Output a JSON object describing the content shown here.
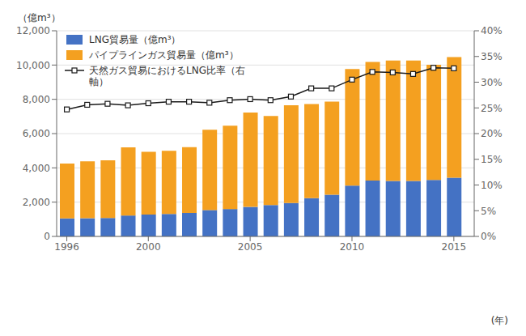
{
  "chart_data": {
    "type": "bar",
    "stacked": true,
    "x": [
      1996,
      1997,
      1998,
      1999,
      2000,
      2001,
      2002,
      2003,
      2004,
      2005,
      2006,
      2007,
      2008,
      2009,
      2010,
      2011,
      2012,
      2013,
      2014,
      2015
    ],
    "xlim": [
      1995.5,
      2016
    ],
    "xticks": [
      1996,
      2000,
      2005,
      2010,
      2015
    ],
    "ylim": [
      0,
      12000
    ],
    "yticks": [
      0,
      {
        "value": 2000,
        "label": "2,000"
      },
      {
        "value": 4000,
        "label": "4,000"
      },
      {
        "value": 6000,
        "label": "6,000"
      },
      {
        "value": 8000,
        "label": "8,000"
      },
      {
        "value": 10000,
        "label": "10,000"
      },
      {
        "value": 12000,
        "label": "12,000"
      }
    ],
    "y2lim": [
      0,
      40
    ],
    "y2ticks": [
      {
        "value": 0,
        "label": "0%"
      },
      {
        "value": 5,
        "label": "5%"
      },
      {
        "value": 10,
        "label": "10%"
      },
      {
        "value": 15,
        "label": "15%"
      },
      {
        "value": 20,
        "label": "20%"
      },
      {
        "value": 25,
        "label": "25%"
      },
      {
        "value": 30,
        "label": "30%"
      },
      {
        "value": 35,
        "label": "35%"
      },
      {
        "value": 40,
        "label": "40%"
      }
    ],
    "ylabel": "（億m³）",
    "xlabel": "(年)",
    "grid": "y",
    "legend": "upper left",
    "series": [
      {
        "name": "LNG貿易量（億m³）",
        "type": "bar",
        "color": "#4472C4",
        "values": [
          1050,
          1060,
          1080,
          1220,
          1280,
          1310,
          1370,
          1540,
          1600,
          1720,
          1830,
          1950,
          2230,
          2430,
          2970,
          3260,
          3240,
          3240,
          3300,
          3420
        ]
      },
      {
        "name": "パイプラインガス貿易量（億m³）",
        "type": "bar",
        "color": "#F4A020",
        "values": [
          3200,
          3320,
          3360,
          3980,
          3660,
          3690,
          3840,
          4680,
          4860,
          5510,
          5200,
          5700,
          5500,
          5440,
          6800,
          6920,
          7020,
          7020,
          6720,
          7050
        ]
      },
      {
        "name": "天然ガス貿易におけるLNG比率（右\n軸）",
        "type": "line",
        "axis": "y2",
        "color": "#1a1a1a",
        "marker": "square",
        "values": [
          24.7,
          25.6,
          25.8,
          25.5,
          25.9,
          26.2,
          26.2,
          26.0,
          26.5,
          26.7,
          26.5,
          27.2,
          28.8,
          28.8,
          30.5,
          32.0,
          31.9,
          31.6,
          32.8,
          32.7
        ]
      }
    ]
  }
}
